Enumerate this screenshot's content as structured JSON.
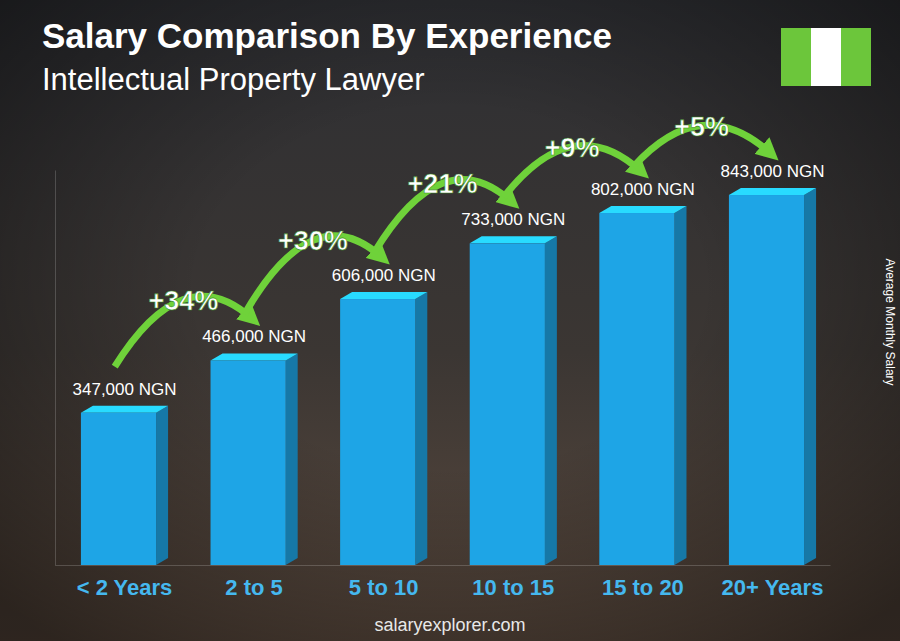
{
  "chart_data": {
    "type": "bar",
    "title": "Salary Comparison By Experience",
    "subtitle": "Intellectual Property Lawyer",
    "y_label": "Average Monthly Salary",
    "source": "salaryexplorer.com",
    "categories": [
      "< 2 Years",
      "2 to 5",
      "5 to 10",
      "10 to 15",
      "15 to 20",
      "20+ Years"
    ],
    "values": [
      347000,
      466000,
      606000,
      733000,
      802000,
      843000
    ],
    "value_labels": [
      "347,000 NGN",
      "466,000 NGN",
      "606,000 NGN",
      "733,000 NGN",
      "802,000 NGN",
      "843,000 NGN"
    ],
    "annotations": [
      "+34%",
      "+30%",
      "+21%",
      "+9%",
      "+5%"
    ],
    "color": "#1ea5e6",
    "ylim": [
      0,
      900000
    ],
    "yticks": [],
    "data_labels": true,
    "tick_labels": "x",
    "grid": false
  }
}
